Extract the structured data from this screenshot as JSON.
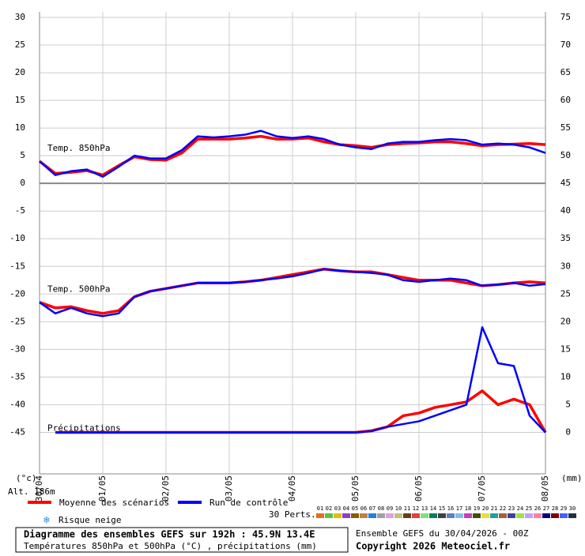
{
  "chart_data": {
    "type": "line",
    "annotations": [
      "Temp. 850hPa",
      "Temp. 500hPa",
      "Précipitations"
    ],
    "y_label": "(°c)",
    "y2_label": "(mm)",
    "altitude": "Alt. 186m",
    "xlim": [
      0,
      192
    ],
    "xticks": [
      {
        "value": 0,
        "label": "30/04"
      },
      {
        "value": 24,
        "label": "01/05"
      },
      {
        "value": 48,
        "label": "02/05"
      },
      {
        "value": 72,
        "label": "03/05"
      },
      {
        "value": 96,
        "label": "04/05"
      },
      {
        "value": 120,
        "label": "05/05"
      },
      {
        "value": 144,
        "label": "06/05"
      },
      {
        "value": 168,
        "label": "07/05"
      },
      {
        "value": 192,
        "label": "08/05"
      }
    ],
    "ylim": [
      -52.5,
      31
    ],
    "yticks": [
      -45,
      -40,
      -35,
      -30,
      -25,
      -20,
      -15,
      -10,
      -5,
      0,
      5,
      10,
      15,
      20,
      25,
      30
    ],
    "y2lim": [
      -7.5,
      76
    ],
    "y2ticks": [
      0,
      5,
      10,
      15,
      20,
      25,
      30,
      35,
      40,
      45,
      50,
      55,
      60,
      65,
      70,
      75
    ],
    "grid": true,
    "x": [
      0,
      6,
      12,
      18,
      24,
      30,
      36,
      42,
      48,
      54,
      60,
      66,
      72,
      78,
      84,
      90,
      96,
      102,
      108,
      114,
      120,
      126,
      132,
      138,
      144,
      150,
      156,
      162,
      168,
      174,
      180,
      186,
      192
    ],
    "series": [
      {
        "name": "Moyenne des scénarios",
        "color": "#ff0000",
        "values": [
          4,
          1.8,
          2,
          2.3,
          1.5,
          3.2,
          4.8,
          4.3,
          4.2,
          5.5,
          8,
          8,
          8,
          8.2,
          8.5,
          8,
          8,
          8.2,
          7.5,
          7,
          6.8,
          6.5,
          7,
          7.2,
          7.3,
          7.5,
          7.5,
          7.2,
          6.8,
          7,
          7.1,
          7.2,
          7
        ]
      },
      {
        "name": "Run de contrôle",
        "color": "#0000ff",
        "values": [
          4,
          1.5,
          2.2,
          2.5,
          1.2,
          3,
          5,
          4.5,
          4.5,
          6,
          8.5,
          8.3,
          8.5,
          8.8,
          9.5,
          8.5,
          8.2,
          8.5,
          8,
          7,
          6.5,
          6.2,
          7.2,
          7.5,
          7.5,
          7.8,
          8,
          7.8,
          7,
          7.2,
          7,
          6.5,
          5.5
        ]
      },
      {
        "name": "Moyenne des scénarios",
        "color": "#ff0000",
        "values": [
          -21.5,
          -22.5,
          -22.3,
          -23,
          -23.5,
          -23,
          -20.5,
          -19.5,
          -19,
          -18.5,
          -18,
          -18,
          -18,
          -17.8,
          -17.5,
          -17,
          -16.5,
          -16,
          -15.5,
          -15.8,
          -16,
          -16,
          -16.5,
          -17,
          -17.5,
          -17.5,
          -17.5,
          -18,
          -18.5,
          -18.3,
          -18,
          -17.8,
          -18
        ]
      },
      {
        "name": "Run de contrôle",
        "color": "#0000ff",
        "values": [
          -21.5,
          -23.5,
          -22.5,
          -23.5,
          -24,
          -23.5,
          -20.5,
          -19.5,
          -19,
          -18.5,
          -18,
          -18,
          -18,
          -17.8,
          -17.5,
          -17.2,
          -16.8,
          -16.2,
          -15.5,
          -15.8,
          -16,
          -16.2,
          -16.5,
          -17.5,
          -17.8,
          -17.5,
          -17.2,
          -17.5,
          -18.5,
          -18.3,
          -18,
          -18.5,
          -18.2
        ]
      },
      {
        "name": "Moyenne des scénarios",
        "color": "#ff0000",
        "axis": "y2",
        "values": [
          null,
          0,
          0,
          0,
          0,
          0,
          0,
          0,
          0,
          0,
          0,
          0,
          0,
          0,
          0,
          0,
          0,
          0,
          0,
          0,
          0,
          0.3,
          1,
          3,
          3.5,
          4.5,
          5,
          5.5,
          7.5,
          5,
          6,
          5,
          0
        ]
      },
      {
        "name": "Run de contrôle",
        "color": "#0000ff",
        "axis": "y2",
        "values": [
          null,
          0,
          0,
          0,
          0,
          0,
          0,
          0,
          0,
          0,
          0,
          0,
          0,
          0,
          0,
          0,
          0,
          0,
          0,
          0,
          0,
          0.2,
          1,
          1.5,
          2,
          3,
          4,
          5,
          19,
          12.5,
          12,
          3,
          0
        ]
      }
    ],
    "legend": [
      "Moyenne des scénarios",
      "Run de contrôle",
      "Risque neige"
    ],
    "perturbations_label": "30 Perts.",
    "perturbations": [
      {
        "label": "01",
        "color": "#e07020"
      },
      {
        "label": "02",
        "color": "#60c040"
      },
      {
        "label": "03",
        "color": "#e0c000"
      },
      {
        "label": "04",
        "color": "#9040c0"
      },
      {
        "label": "05",
        "color": "#806000"
      },
      {
        "label": "06",
        "color": "#c08040"
      },
      {
        "label": "07",
        "color": "#2080e0"
      },
      {
        "label": "08",
        "color": "#a0a0a0"
      },
      {
        "label": "09",
        "color": "#e0a0e0"
      },
      {
        "label": "10",
        "color": "#c0c080"
      },
      {
        "label": "11",
        "color": "#604020"
      },
      {
        "label": "12",
        "color": "#e04040"
      },
      {
        "label": "13",
        "color": "#80e080"
      },
      {
        "label": "14",
        "color": "#008060"
      },
      {
        "label": "15",
        "color": "#404040"
      },
      {
        "label": "16",
        "color": "#6080c0"
      },
      {
        "label": "17",
        "color": "#80c0e0"
      },
      {
        "label": "18",
        "color": "#c040c0"
      },
      {
        "label": "19",
        "color": "#405000"
      },
      {
        "label": "20",
        "color": "#e0e040"
      },
      {
        "label": "21",
        "color": "#20a0a0"
      },
      {
        "label": "22",
        "color": "#a06040"
      },
      {
        "label": "23",
        "color": "#4040a0"
      },
      {
        "label": "24",
        "color": "#a0e040"
      },
      {
        "label": "25",
        "color": "#c0a0ff"
      },
      {
        "label": "26",
        "color": "#ff80a0"
      },
      {
        "label": "27",
        "color": "#000080"
      },
      {
        "label": "28",
        "color": "#800000"
      },
      {
        "label": "29",
        "color": "#4060ff"
      },
      {
        "label": "30",
        "color": "#203040"
      }
    ],
    "title": "Diagramme des ensembles GEFS sur 192h : 45.9N 13.4E",
    "subtitle": "Températures 850hPa et 500hPa (°C) , précipitations (mm)",
    "run": "Ensemble GEFS du 30/04/2026 - 00Z",
    "copyright": "Copyright 2026 Meteociel.fr"
  }
}
